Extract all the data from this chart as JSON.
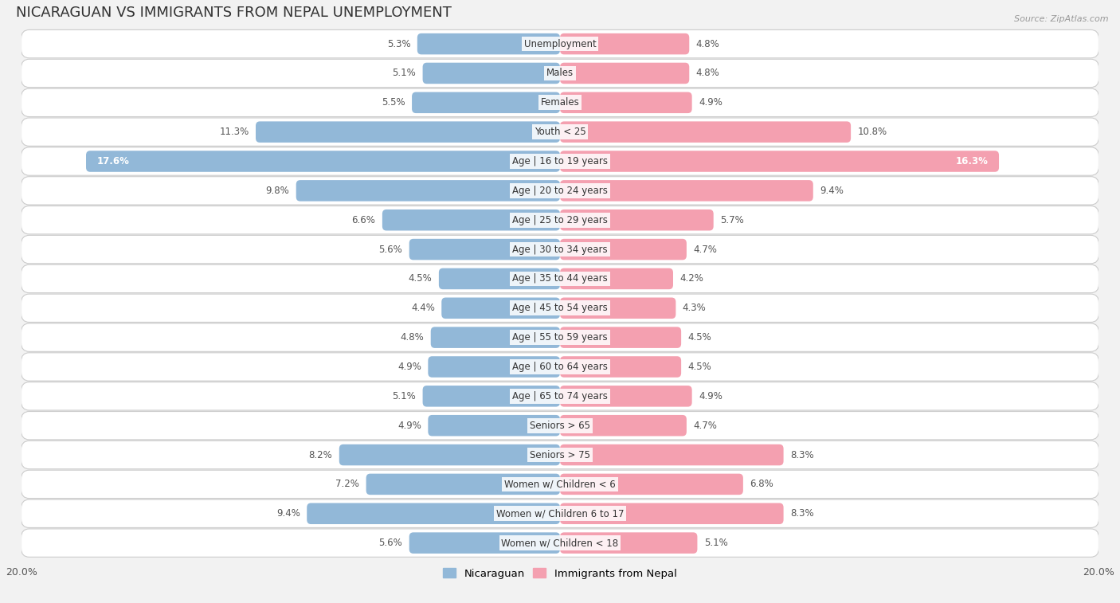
{
  "title": "NICARAGUAN VS IMMIGRANTS FROM NEPAL UNEMPLOYMENT",
  "source": "Source: ZipAtlas.com",
  "categories": [
    "Unemployment",
    "Males",
    "Females",
    "Youth < 25",
    "Age | 16 to 19 years",
    "Age | 20 to 24 years",
    "Age | 25 to 29 years",
    "Age | 30 to 34 years",
    "Age | 35 to 44 years",
    "Age | 45 to 54 years",
    "Age | 55 to 59 years",
    "Age | 60 to 64 years",
    "Age | 65 to 74 years",
    "Seniors > 65",
    "Seniors > 75",
    "Women w/ Children < 6",
    "Women w/ Children 6 to 17",
    "Women w/ Children < 18"
  ],
  "nicaraguan": [
    5.3,
    5.1,
    5.5,
    11.3,
    17.6,
    9.8,
    6.6,
    5.6,
    4.5,
    4.4,
    4.8,
    4.9,
    5.1,
    4.9,
    8.2,
    7.2,
    9.4,
    5.6
  ],
  "nepal": [
    4.8,
    4.8,
    4.9,
    10.8,
    16.3,
    9.4,
    5.7,
    4.7,
    4.2,
    4.3,
    4.5,
    4.5,
    4.9,
    4.7,
    8.3,
    6.8,
    8.3,
    5.1
  ],
  "nicaraguan_color": "#92b8d8",
  "nepal_color": "#f4a0b0",
  "background_color": "#f2f2f2",
  "row_color_light": "#ffffff",
  "row_color_dark": "#e8e8e8",
  "max_value": 20.0,
  "legend_nicaraguan": "Nicaraguan",
  "legend_nepal": "Immigrants from Nepal",
  "title_fontsize": 13,
  "label_fontsize": 8.5,
  "value_fontsize": 8.5
}
